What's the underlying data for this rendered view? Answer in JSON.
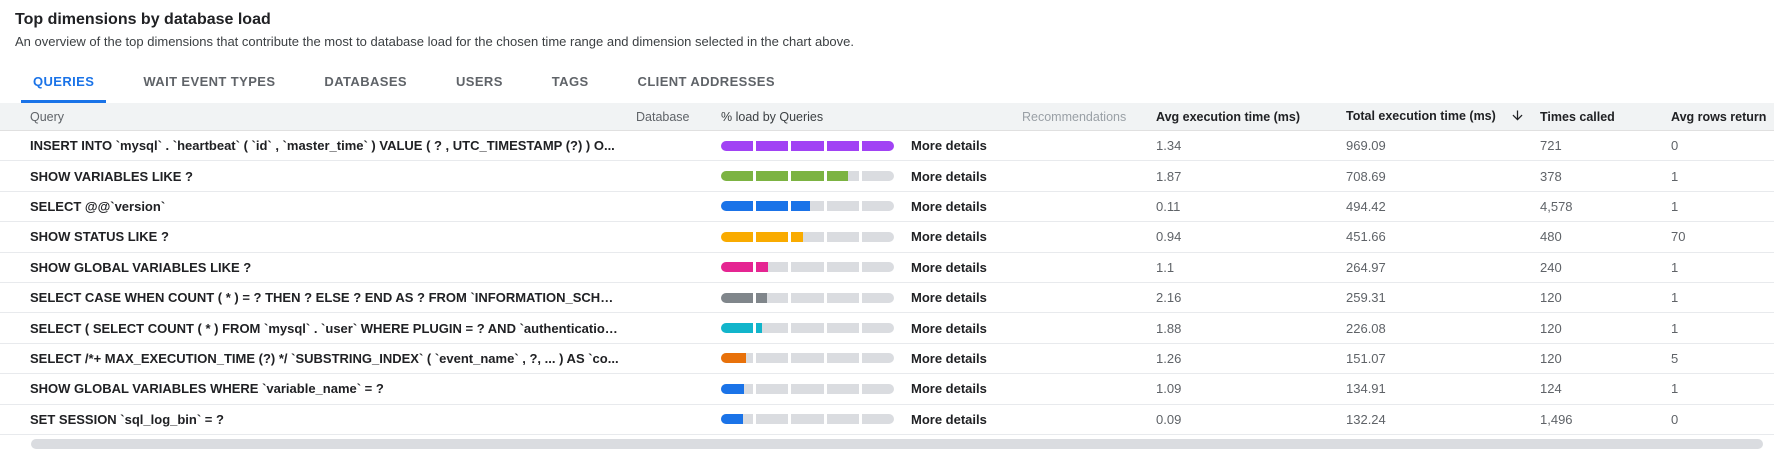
{
  "header": {
    "title": "Top dimensions by database load",
    "subtitle": "An overview of the top dimensions that contribute the most to database load for the chosen time range and dimension selected in the chart above."
  },
  "tabs": [
    {
      "label": "QUERIES",
      "active": true
    },
    {
      "label": "WAIT EVENT TYPES",
      "active": false
    },
    {
      "label": "DATABASES",
      "active": false
    },
    {
      "label": "USERS",
      "active": false
    },
    {
      "label": "TAGS",
      "active": false
    },
    {
      "label": "CLIENT ADDRESSES",
      "active": false
    }
  ],
  "colors": {
    "accent_blue": "#1a73e8",
    "bar_track": "#dadce0",
    "header_bg": "#f1f3f4",
    "palette": [
      "#a142f4",
      "#7cb342",
      "#1a73e8",
      "#f9ab00",
      "#e52592",
      "#80868b",
      "#12b5cb",
      "#e8710a"
    ]
  },
  "table": {
    "columns": [
      {
        "label": "Query"
      },
      {
        "label": "Database"
      },
      {
        "label": "% load by Queries"
      },
      {
        "label": "Recommendations"
      },
      {
        "label": "Avg execution time (ms)"
      },
      {
        "label": "Total execution time (ms)",
        "sorted": "descending"
      },
      {
        "label": "Times called"
      },
      {
        "label": "Avg rows returned"
      }
    ],
    "more_details_label": "More details",
    "rows": [
      {
        "query": "INSERT INTO `mysql` . `heartbeat` ( `id` , `master_time` ) VALUE ( ? , UTC_TIMESTAMP (?) ) O...",
        "database": "",
        "load_percent": 100,
        "bar_color": "#a142f4",
        "avg_execution_ms": "1.34",
        "total_execution_ms": "969.09",
        "times_called": "721",
        "avg_rows_returned": "0"
      },
      {
        "query": "SHOW VARIABLES LIKE ?",
        "database": "",
        "load_percent": 73,
        "bar_color": "#7cb342",
        "avg_execution_ms": "1.87",
        "total_execution_ms": "708.69",
        "times_called": "378",
        "avg_rows_returned": "1"
      },
      {
        "query": "SELECT @@`version`",
        "database": "",
        "load_percent": 51.5,
        "bar_color": "#1a73e8",
        "avg_execution_ms": "0.11",
        "total_execution_ms": "494.42",
        "times_called": "4,578",
        "avg_rows_returned": "1"
      },
      {
        "query": "SHOW STATUS LIKE ?",
        "database": "",
        "load_percent": 47,
        "bar_color": "#f9ab00",
        "avg_execution_ms": "0.94",
        "total_execution_ms": "451.66",
        "times_called": "480",
        "avg_rows_returned": "70"
      },
      {
        "query": "SHOW GLOBAL VARIABLES LIKE ?",
        "database": "",
        "load_percent": 27.4,
        "bar_color": "#e52592",
        "avg_execution_ms": "1.1",
        "total_execution_ms": "264.97",
        "times_called": "240",
        "avg_rows_returned": "1"
      },
      {
        "query": "SELECT CASE WHEN COUNT ( * ) = ? THEN ? ELSE ? END AS ? FROM `INFORMATION_SCHEM...",
        "database": "",
        "load_percent": 26.8,
        "bar_color": "#80868b",
        "avg_execution_ms": "2.16",
        "total_execution_ms": "259.31",
        "times_called": "120",
        "avg_rows_returned": "1"
      },
      {
        "query": "SELECT ( SELECT COUNT ( * ) FROM `mysql` . `user` WHERE PLUGIN = ? AND `authentication...",
        "database": "",
        "load_percent": 23.5,
        "bar_color": "#12b5cb",
        "avg_execution_ms": "1.88",
        "total_execution_ms": "226.08",
        "times_called": "120",
        "avg_rows_returned": "1"
      },
      {
        "query": "SELECT /*+ MAX_EXECUTION_TIME (?) */ `SUBSTRING_INDEX` ( `event_name` , ?, ... ) AS `co...",
        "database": "",
        "load_percent": 15.7,
        "bar_color": "#e8710a",
        "avg_execution_ms": "1.26",
        "total_execution_ms": "151.07",
        "times_called": "120",
        "avg_rows_returned": "5"
      },
      {
        "query": "SHOW GLOBAL VARIABLES WHERE `variable_name` = ?",
        "database": "",
        "load_percent": 14,
        "bar_color": "#1a73e8",
        "avg_execution_ms": "1.09",
        "total_execution_ms": "134.91",
        "times_called": "124",
        "avg_rows_returned": "1"
      },
      {
        "query": "SET SESSION `sql_log_bin` = ?",
        "database": "",
        "load_percent": 13.7,
        "bar_color": "#1a73e8",
        "avg_execution_ms": "0.09",
        "total_execution_ms": "132.24",
        "times_called": "1,496",
        "avg_rows_returned": "0"
      }
    ]
  }
}
